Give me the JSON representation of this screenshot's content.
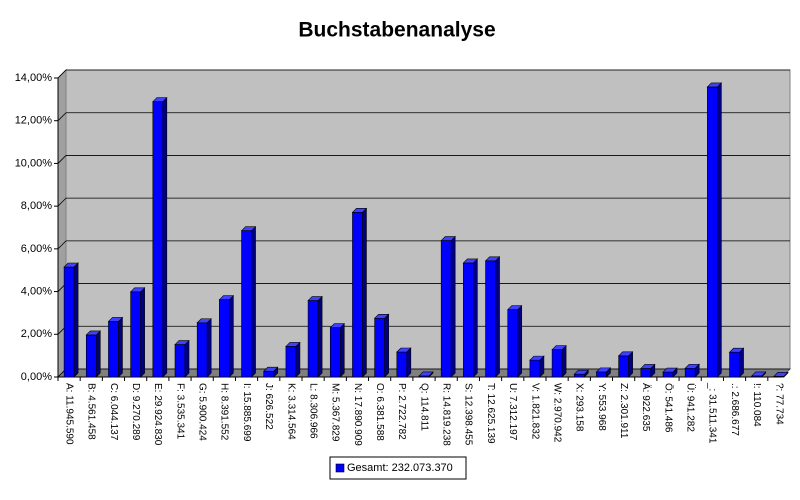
{
  "chart_data": {
    "type": "bar",
    "title": "Buchstabenanalyse",
    "categories": [
      "A: 11.945.590",
      "B: 4.561.458",
      "C: 6.044.137",
      "D: 9.270.289",
      "E: 29.924.830",
      "F: 3.535.341",
      "G: 5.900.424",
      "H: 8.391.552",
      "I: 15.885.699",
      "J: 626.522",
      "K: 3.314.564",
      "L: 8.306.966",
      "M: 5.367.829",
      "N: 17.890.909",
      "O: 6.381.588",
      "P: 2.722.782",
      "Q: 114.811",
      "R: 14.819.238",
      "S: 12.398.455",
      "T: 12.625.139",
      "U: 7.312.197",
      "V: 1.821.832",
      "W: 2.970.942",
      "X: 293.158",
      "Y: 553.968",
      "Z: 2.301.911",
      "Ä: 922.635",
      "Ö: 541.486",
      "Ü: 941.282",
      "_: 31.511.341",
      ".: 2.686.677",
      "!: 110.084",
      "?: 77.734"
    ],
    "series": [
      {
        "name": "Gesamt: 232.073.370",
        "color": "#0000ff",
        "values": [
          5.15,
          1.97,
          2.6,
          3.99,
          12.89,
          1.52,
          2.54,
          3.62,
          6.85,
          0.27,
          1.43,
          3.58,
          2.31,
          7.71,
          2.75,
          1.17,
          0.05,
          6.39,
          5.34,
          5.44,
          3.15,
          0.79,
          1.28,
          0.13,
          0.24,
          0.99,
          0.4,
          0.23,
          0.41,
          13.58,
          1.16,
          0.05,
          0.03
        ]
      }
    ],
    "ylim": [
      0,
      14
    ],
    "yticks": [
      {
        "value": 0,
        "label": "0,00%"
      },
      {
        "value": 2,
        "label": "2,00%"
      },
      {
        "value": 4,
        "label": "4,00%"
      },
      {
        "value": 6,
        "label": "6,00%"
      },
      {
        "value": 8,
        "label": "8,00%"
      },
      {
        "value": 10,
        "label": "10,00%"
      },
      {
        "value": 12,
        "label": "12,00%"
      },
      {
        "value": 14,
        "label": "14,00%"
      }
    ],
    "grid": true,
    "legend": "bottom"
  }
}
